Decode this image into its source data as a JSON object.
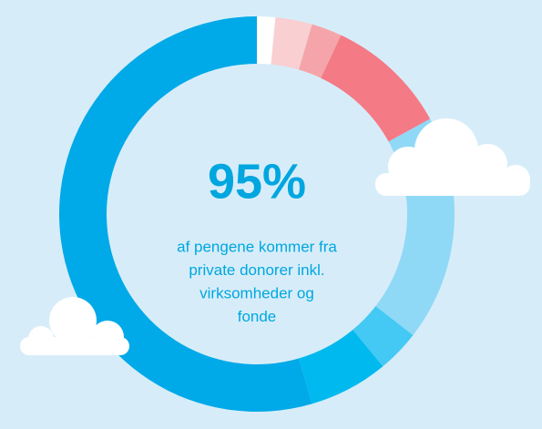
{
  "chart_data": {
    "type": "donut",
    "values": [
      1.5,
      3,
      2.5,
      10,
      18.5,
      3.5,
      6.5,
      54.5
    ],
    "colors": [
      "#ffffff",
      "#f9cfd2",
      "#f5a5aa",
      "#f47a86",
      "#90d9f6",
      "#43c9f4",
      "#00b9ee",
      "#00a9e8"
    ],
    "center_value": "95%",
    "center_text": [
      "af pengene kommer fra",
      "private donorer inkl.",
      "virksomheder og",
      "fonde"
    ]
  }
}
